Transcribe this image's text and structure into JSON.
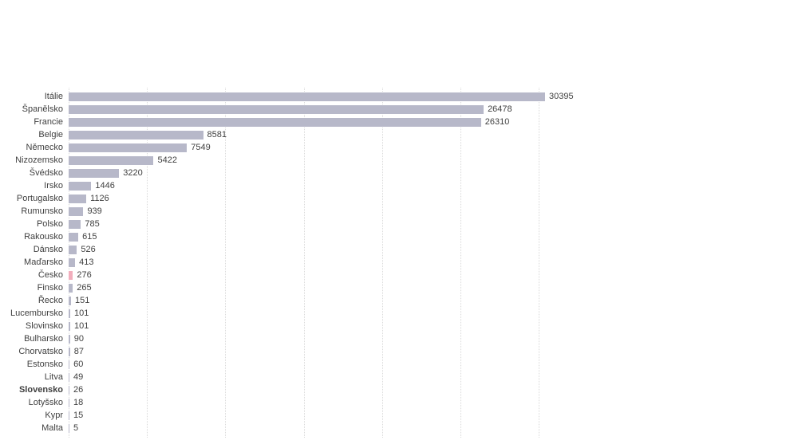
{
  "chart_data": {
    "type": "bar",
    "orientation": "horizontal",
    "title": "",
    "xlabel": "",
    "ylabel": "",
    "categories": [
      "Itálie",
      "Španělsko",
      "Francie",
      "Belgie",
      "Německo",
      "Nizozemsko",
      "Švédsko",
      "Irsko",
      "Portugalsko",
      "Rumunsko",
      "Polsko",
      "Rakousko",
      "Dánsko",
      "Maďarsko",
      "Česko",
      "Finsko",
      "Řecko",
      "Lucembursko",
      "Slovinsko",
      "Bulharsko",
      "Chorvatsko",
      "Estonsko",
      "Litva",
      "Slovensko",
      "Lotyšsko",
      "Kypr",
      "Malta"
    ],
    "values": [
      30395,
      26478,
      26310,
      8581,
      7549,
      5422,
      3220,
      1446,
      1126,
      939,
      785,
      615,
      526,
      413,
      276,
      265,
      151,
      101,
      101,
      90,
      87,
      60,
      49,
      26,
      18,
      15,
      5
    ],
    "data_labels": [
      "30395",
      "26478",
      "26310",
      "8581",
      "7549",
      "5422",
      "3220",
      "1446",
      "1126",
      "939",
      "785",
      "615",
      "526",
      "413",
      "276",
      "265",
      "151",
      "101",
      "101",
      "90",
      "87",
      "60",
      "49",
      "26",
      "18",
      "15",
      "5"
    ],
    "xlim": [
      0,
      30000
    ],
    "gridline_interval": 5000,
    "grid": "vertical-dotted",
    "legend": "none",
    "bar_color": "#b7b8c9",
    "highlight_category": "Česko",
    "highlight_bar_color": "#f2aebd",
    "bold_category": "Slovensko",
    "label_color": "#3f3f3f",
    "gridline_color": "#d9d9d9"
  }
}
